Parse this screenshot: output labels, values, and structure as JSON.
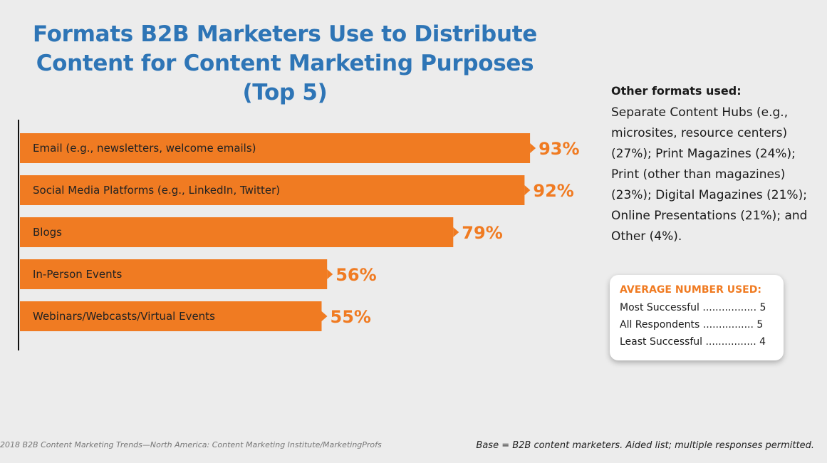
{
  "chart_data": {
    "type": "bar",
    "orientation": "horizontal",
    "title": "Formats B2B Marketers Use to Distribute Content for Content Marketing Purposes (Top 5)",
    "title_lines": [
      "Formats B2B Marketers Use to Distribute",
      "Content for Content Marketing Purposes",
      "(Top 5)"
    ],
    "categories": [
      "Email (e.g., newsletters, welcome emails)",
      "Social Media Platforms (e.g., LinkedIn, Twitter)",
      "Blogs",
      "In-Person Events",
      "Webinars/Webcasts/Virtual Events"
    ],
    "values": [
      93,
      92,
      79,
      56,
      55
    ],
    "value_labels": [
      "93%",
      "92%",
      "79%",
      "56%",
      "55%"
    ],
    "xlim": [
      0,
      100
    ],
    "unit": "%",
    "bar_color": "#f07b22"
  },
  "other_formats": {
    "heading": "Other formats used:",
    "text": "Separate Content Hubs (e.g., microsites, resource centers) (27%); Print Magazines (24%); Print (other than magazines) (23%); Digital Magazines (21%); Online Presentations (21%); and Other (4%)."
  },
  "average_box": {
    "heading": "AVERAGE NUMBER USED:",
    "rows": [
      "Most Successful ................. 5",
      "All Respondents ................ 5",
      "Least Successful ................ 4"
    ]
  },
  "footer": {
    "source": "2018 B2B Content Marketing Trends—North America: Content Marketing Institute/MarketingProfs",
    "base": "Base = B2B content marketers. Aided list; multiple responses permitted."
  },
  "colors": {
    "title": "#2e75b6",
    "accent": "#f07b22",
    "background": "#ececec"
  }
}
